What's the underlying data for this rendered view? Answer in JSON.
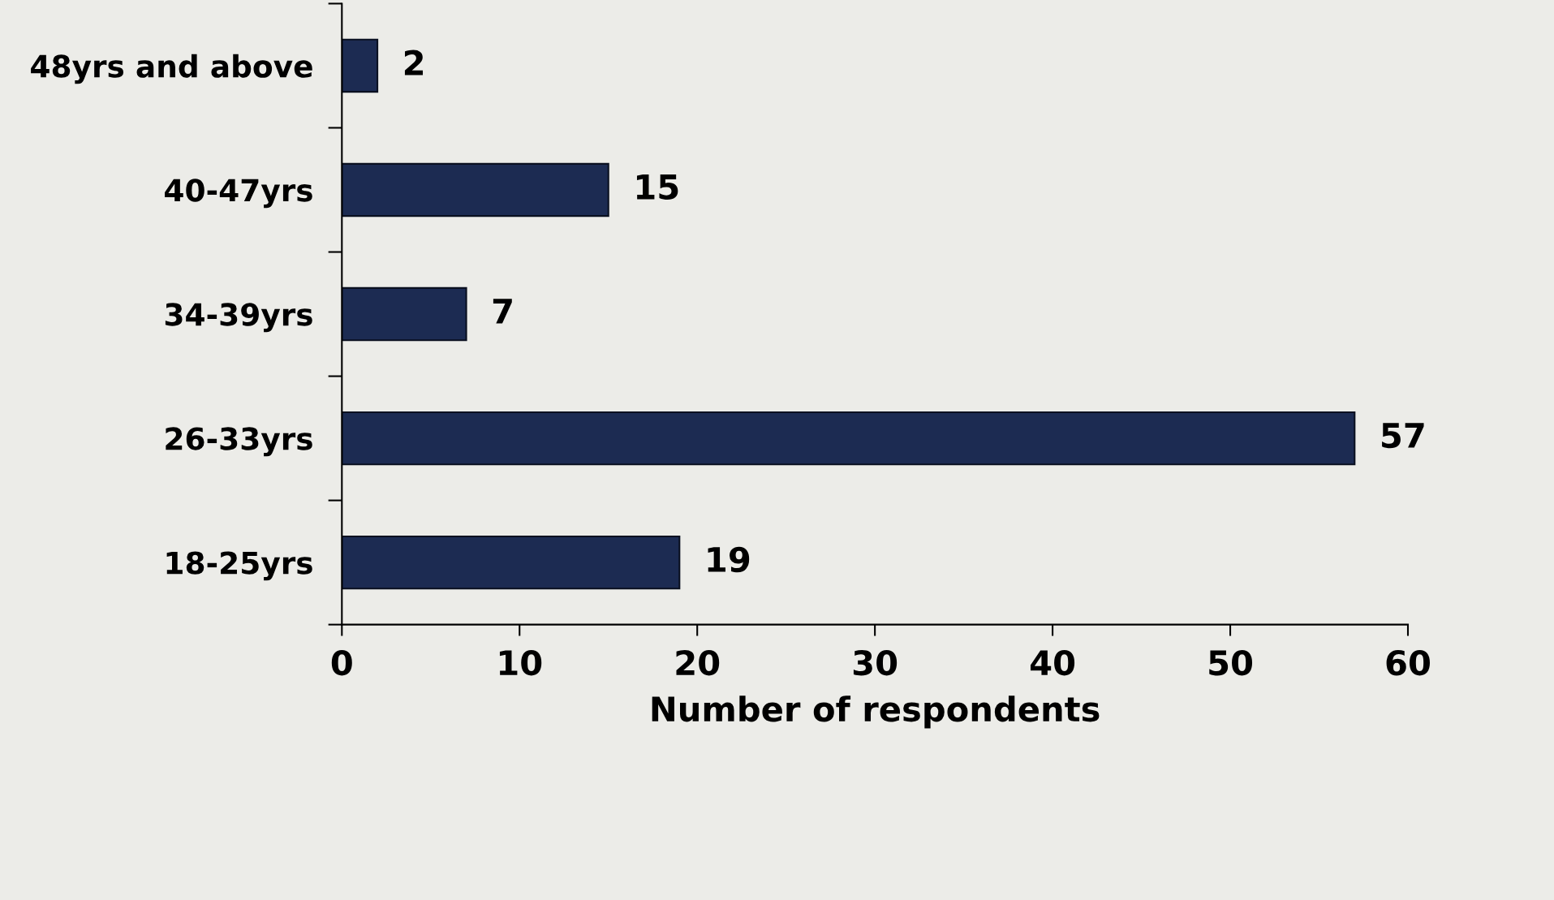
{
  "chart_data": {
    "type": "bar",
    "orientation": "horizontal",
    "categories": [
      "48yrs and above",
      "40-47yrs",
      "34-39yrs",
      "26-33yrs",
      "18-25yrs"
    ],
    "values": [
      2,
      15,
      7,
      57,
      19
    ],
    "color": "#1c2b52",
    "xlabel": "Number of respondents",
    "xlim": [
      0,
      60
    ],
    "xticks": [
      0,
      10,
      20,
      30,
      40,
      50,
      60
    ],
    "data_labels": true,
    "grid": false,
    "legend": false
  }
}
